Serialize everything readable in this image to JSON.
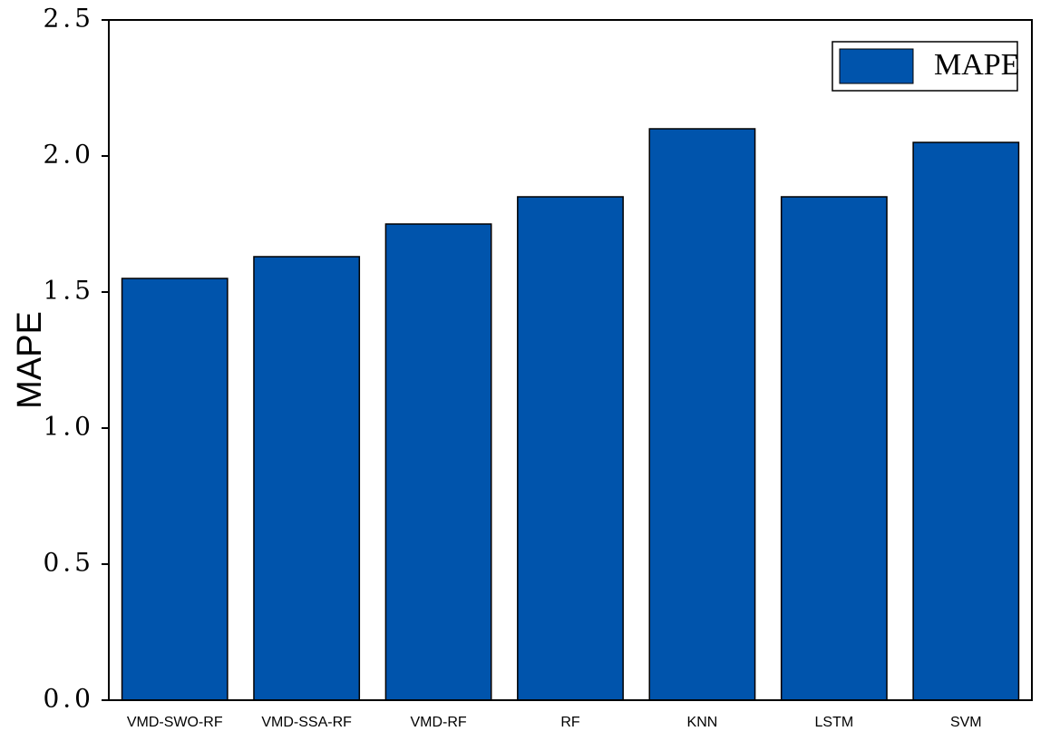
{
  "chart_data": {
    "type": "bar",
    "y_label": "MAPE",
    "categories": [
      "VMD-SWO-RF",
      "VMD-SSA-RF",
      "VMD-RF",
      "RF",
      "KNN",
      "LSTM",
      "SVM"
    ],
    "series": [
      {
        "name": "MAPE",
        "color": "#0054ac",
        "values": [
          1.55,
          1.63,
          1.75,
          1.85,
          2.1,
          1.85,
          2.05
        ]
      }
    ],
    "ylim": [
      0,
      2.5
    ],
    "yticks": [
      {
        "value": 0,
        "label": "0.0"
      },
      0.5,
      {
        "value": 1,
        "label": "1.0"
      },
      1.5,
      {
        "value": 2,
        "label": "2.0"
      },
      2.5
    ],
    "legend": "top-right"
  }
}
